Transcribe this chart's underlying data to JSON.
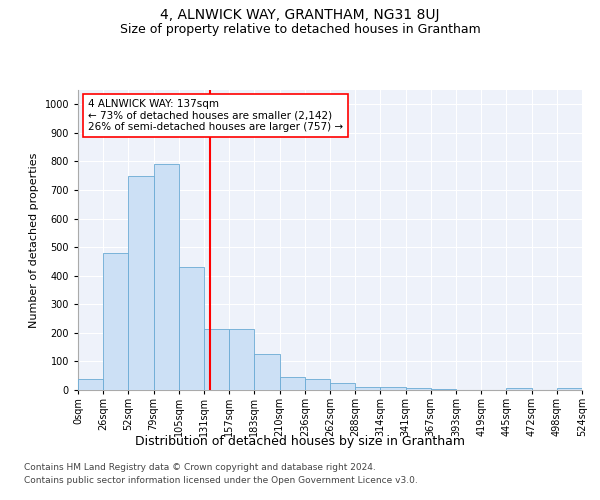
{
  "title": "4, ALNWICK WAY, GRANTHAM, NG31 8UJ",
  "subtitle": "Size of property relative to detached houses in Grantham",
  "xlabel": "Distribution of detached houses by size in Grantham",
  "ylabel": "Number of detached properties",
  "bar_values": [
    40,
    480,
    750,
    790,
    430,
    215,
    215,
    125,
    45,
    40,
    25,
    12,
    12,
    8,
    5,
    0,
    0,
    8,
    0,
    8
  ],
  "bin_labels": [
    "0sqm",
    "26sqm",
    "52sqm",
    "79sqm",
    "105sqm",
    "131sqm",
    "157sqm",
    "183sqm",
    "210sqm",
    "236sqm",
    "262sqm",
    "288sqm",
    "314sqm",
    "341sqm",
    "367sqm",
    "393sqm",
    "419sqm",
    "445sqm",
    "472sqm",
    "498sqm",
    "524sqm"
  ],
  "bar_color": "#cce0f5",
  "bar_edge_color": "#6aaad4",
  "vline_color": "red",
  "annotation_text": "4 ALNWICK WAY: 137sqm\n← 73% of detached houses are smaller (2,142)\n26% of semi-detached houses are larger (757) →",
  "annotation_box_color": "white",
  "annotation_box_edge": "red",
  "ylim": [
    0,
    1050
  ],
  "yticks": [
    0,
    100,
    200,
    300,
    400,
    500,
    600,
    700,
    800,
    900,
    1000
  ],
  "background_color": "#eef2fa",
  "grid_color": "white",
  "footer_line1": "Contains HM Land Registry data © Crown copyright and database right 2024.",
  "footer_line2": "Contains public sector information licensed under the Open Government Licence v3.0.",
  "title_fontsize": 10,
  "subtitle_fontsize": 9,
  "xlabel_fontsize": 9,
  "ylabel_fontsize": 8,
  "tick_fontsize": 7,
  "annotation_fontsize": 7.5,
  "footer_fontsize": 6.5
}
